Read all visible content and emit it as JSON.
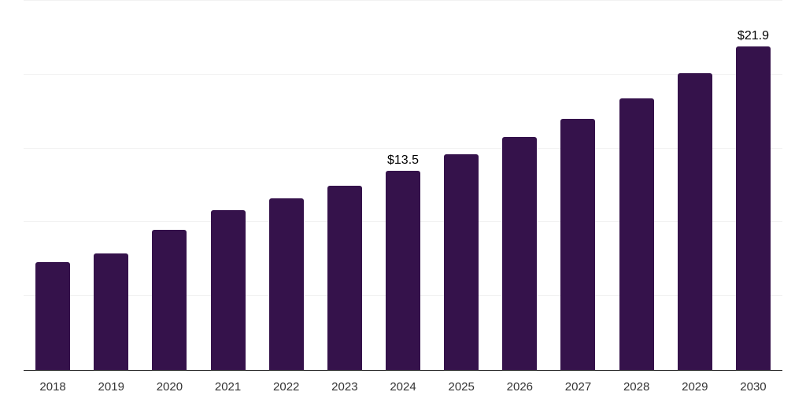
{
  "chart_data": {
    "type": "bar",
    "title": "",
    "xlabel": "",
    "ylabel": "",
    "categories": [
      "2018",
      "2019",
      "2020",
      "2021",
      "2022",
      "2023",
      "2024",
      "2025",
      "2026",
      "2027",
      "2028",
      "2029",
      "2030"
    ],
    "values": [
      7.3,
      7.9,
      9.5,
      10.8,
      11.6,
      12.5,
      13.5,
      14.6,
      15.8,
      17.0,
      18.4,
      20.1,
      21.9
    ],
    "data_labels": [
      {
        "category": "2024",
        "text": "$13.5"
      },
      {
        "category": "2030",
        "text": "$21.9"
      }
    ],
    "ylim": [
      0,
      25
    ],
    "gridline_values": [
      5,
      10,
      15,
      20,
      25
    ],
    "grid": "horizontal-only",
    "legend": "none",
    "y_axis_tick_labels": "none",
    "colors": {
      "bar": "#35124b",
      "gridline": "#f2f2f2",
      "axis_line": "#1a1a1a",
      "tick_label": "#333333",
      "data_label": "#000000",
      "background": "#ffffff"
    }
  }
}
